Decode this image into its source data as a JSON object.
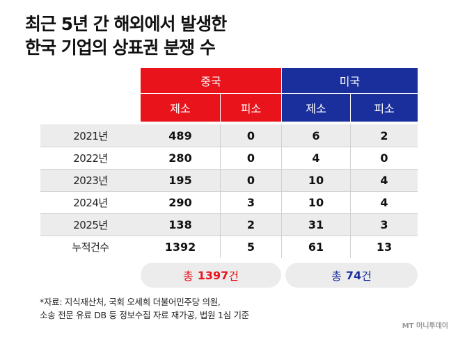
{
  "title": {
    "line1": "최근 5년 간 해외에서 발생한",
    "line2": "한국 기업의 상표권 분쟁 수"
  },
  "chart_data": {
    "type": "table",
    "groups": [
      {
        "name": "중국",
        "columns": [
          "제소",
          "피소"
        ],
        "color": "#e8131b"
      },
      {
        "name": "미국",
        "columns": [
          "제소",
          "피소"
        ],
        "color": "#1b2f9c"
      }
    ],
    "rows": [
      {
        "label": "2021년",
        "values": [
          "489",
          "0",
          "6",
          "2"
        ]
      },
      {
        "label": "2022년",
        "values": [
          "280",
          "0",
          "4",
          "0"
        ]
      },
      {
        "label": "2023년",
        "values": [
          "195",
          "0",
          "10",
          "4"
        ]
      },
      {
        "label": "2024년",
        "values": [
          "290",
          "3",
          "10",
          "4"
        ]
      },
      {
        "label": "2025년",
        "values": [
          "138",
          "2",
          "31",
          "3"
        ]
      },
      {
        "label": "누적건수",
        "values": [
          "1392",
          "5",
          "61",
          "13"
        ]
      }
    ],
    "totals": [
      {
        "prefix": "총",
        "value": "1397",
        "suffix": "건"
      },
      {
        "prefix": "총",
        "value": "74",
        "suffix": "건"
      }
    ]
  },
  "source": {
    "line1": "*자료: 지식재산처, 국회 오세희 더불어민주당 의원,",
    "line2": "소송 전문 유료 DB 등 정보수집 자료 재가공, 법원 1심 기준"
  },
  "logo": "MT 머니투데이"
}
